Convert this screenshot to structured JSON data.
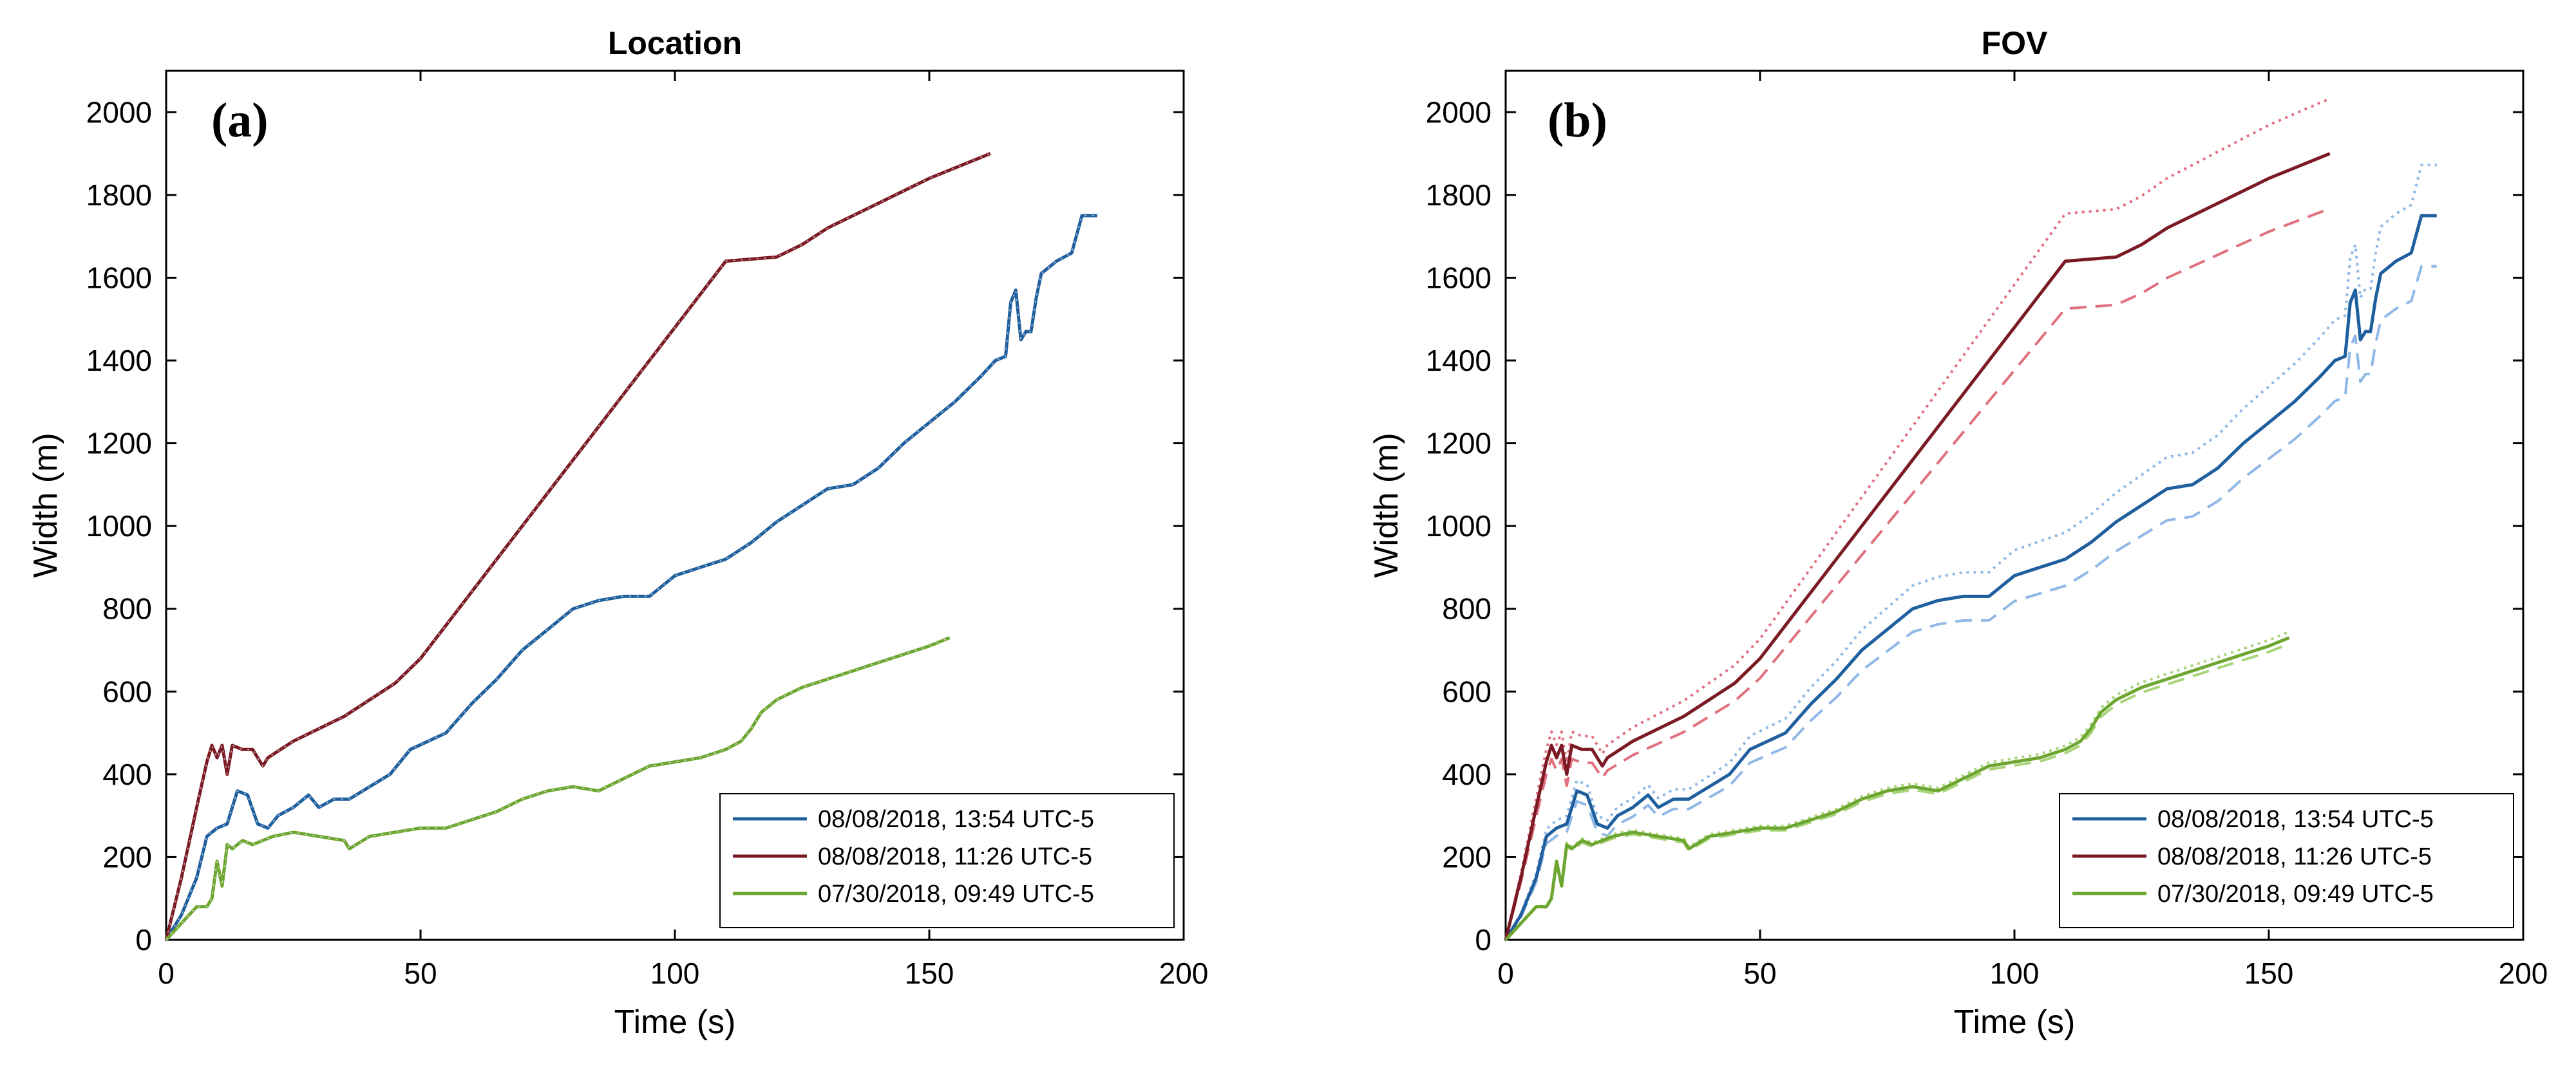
{
  "chart_data": [
    {
      "type": "line",
      "title": "Location",
      "panel_label": "(a)",
      "xlabel": "Time (s)",
      "ylabel": "Width (m)",
      "xlim": [
        0,
        200
      ],
      "ylim": [
        0,
        2100
      ],
      "xticks": [
        0,
        50,
        100,
        150,
        200
      ],
      "yticks": [
        0,
        200,
        400,
        600,
        800,
        1000,
        1200,
        1400,
        1600,
        1800,
        2000
      ],
      "grid": false,
      "legend_position": "bottom-right",
      "series": [
        {
          "name": "08/08/2018, 13:54 UTC-5",
          "color": "#1f5f9e",
          "bands": false,
          "x": [
            0,
            3,
            6,
            8,
            10,
            12,
            14,
            16,
            18,
            20,
            22,
            25,
            28,
            30,
            33,
            36,
            40,
            44,
            48,
            55,
            60,
            65,
            70,
            75,
            80,
            85,
            90,
            95,
            100,
            105,
            110,
            115,
            120,
            125,
            130,
            135,
            140,
            145,
            150,
            155,
            160,
            163,
            165,
            166,
            167,
            168,
            169,
            170,
            171,
            172,
            175,
            178,
            180,
            183
          ],
          "y": [
            0,
            60,
            150,
            250,
            270,
            280,
            360,
            350,
            280,
            270,
            300,
            320,
            350,
            320,
            340,
            340,
            370,
            400,
            460,
            500,
            570,
            630,
            700,
            750,
            800,
            820,
            830,
            830,
            880,
            900,
            920,
            960,
            1010,
            1050,
            1090,
            1100,
            1140,
            1200,
            1250,
            1300,
            1360,
            1400,
            1410,
            1540,
            1570,
            1450,
            1470,
            1470,
            1550,
            1610,
            1640,
            1660,
            1750,
            1750
          ]
        },
        {
          "name": "08/08/2018, 11:26 UTC-5",
          "color": "#7a1a24",
          "bands": false,
          "x": [
            0,
            3,
            6,
            8,
            9,
            10,
            11,
            12,
            13,
            15,
            17,
            19,
            20,
            25,
            30,
            35,
            40,
            45,
            50,
            60,
            70,
            80,
            90,
            100,
            110,
            120,
            125,
            130,
            140,
            150,
            160,
            162
          ],
          "y": [
            0,
            150,
            320,
            430,
            470,
            440,
            470,
            400,
            470,
            460,
            460,
            420,
            440,
            480,
            510,
            540,
            580,
            620,
            680,
            840,
            1000,
            1160,
            1320,
            1480,
            1640,
            1650,
            1680,
            1720,
            1780,
            1840,
            1890,
            1900
          ]
        },
        {
          "name": "07/30/2018, 09:49 UTC-5",
          "color": "#6ea632",
          "bands": false,
          "x": [
            0,
            3,
            6,
            8,
            9,
            10,
            11,
            12,
            13,
            15,
            17,
            19,
            21,
            25,
            30,
            35,
            36,
            40,
            45,
            50,
            55,
            60,
            65,
            70,
            75,
            80,
            85,
            90,
            95,
            100,
            105,
            110,
            113,
            115,
            117,
            120,
            125,
            130,
            135,
            140,
            145,
            150,
            154
          ],
          "y": [
            0,
            40,
            80,
            80,
            100,
            190,
            130,
            230,
            220,
            240,
            230,
            240,
            250,
            260,
            250,
            240,
            220,
            250,
            260,
            270,
            270,
            290,
            310,
            340,
            360,
            370,
            360,
            390,
            420,
            430,
            440,
            460,
            480,
            510,
            550,
            580,
            610,
            630,
            650,
            670,
            690,
            710,
            730
          ]
        }
      ]
    },
    {
      "type": "line",
      "title": "FOV",
      "panel_label": "(b)",
      "xlabel": "Time (s)",
      "ylabel": "Width (m)",
      "xlim": [
        0,
        200
      ],
      "ylim": [
        0,
        2100
      ],
      "xticks": [
        0,
        50,
        100,
        150,
        200
      ],
      "yticks": [
        0,
        200,
        400,
        600,
        800,
        1000,
        1200,
        1400,
        1600,
        1800,
        2000
      ],
      "grid": false,
      "legend_position": "bottom-right",
      "series": [
        {
          "name": "08/08/2018, 13:54 UTC-5",
          "color": "#1f5f9e",
          "band_color": "#8fb8e6",
          "bands": true,
          "upper_scale": 1.07,
          "lower_scale": 0.93,
          "x": [
            0,
            3,
            6,
            8,
            10,
            12,
            14,
            16,
            18,
            20,
            22,
            25,
            28,
            30,
            33,
            36,
            40,
            44,
            48,
            55,
            60,
            65,
            70,
            75,
            80,
            85,
            90,
            95,
            100,
            105,
            110,
            115,
            120,
            125,
            130,
            135,
            140,
            145,
            150,
            155,
            160,
            163,
            165,
            166,
            167,
            168,
            169,
            170,
            171,
            172,
            175,
            178,
            180,
            183
          ],
          "y": [
            0,
            60,
            150,
            250,
            270,
            280,
            360,
            350,
            280,
            270,
            300,
            320,
            350,
            320,
            340,
            340,
            370,
            400,
            460,
            500,
            570,
            630,
            700,
            750,
            800,
            820,
            830,
            830,
            880,
            900,
            920,
            960,
            1010,
            1050,
            1090,
            1100,
            1140,
            1200,
            1250,
            1300,
            1360,
            1400,
            1410,
            1540,
            1570,
            1450,
            1470,
            1470,
            1550,
            1610,
            1640,
            1660,
            1750,
            1750
          ]
        },
        {
          "name": "08/08/2018, 11:26 UTC-5",
          "color": "#7a1a24",
          "band_color": "#e0707e",
          "bands": true,
          "upper_scale": 1.07,
          "lower_scale": 0.93,
          "x": [
            0,
            3,
            6,
            8,
            9,
            10,
            11,
            12,
            13,
            15,
            17,
            19,
            20,
            25,
            30,
            35,
            40,
            45,
            50,
            60,
            70,
            80,
            90,
            100,
            110,
            120,
            125,
            130,
            140,
            150,
            160,
            162
          ],
          "y": [
            0,
            150,
            320,
            430,
            470,
            440,
            470,
            400,
            470,
            460,
            460,
            420,
            440,
            480,
            510,
            540,
            580,
            620,
            680,
            840,
            1000,
            1160,
            1320,
            1480,
            1640,
            1650,
            1680,
            1720,
            1780,
            1840,
            1890,
            1900
          ]
        },
        {
          "name": "07/30/2018, 09:49 UTC-5",
          "color": "#6ea632",
          "band_color": "#a8d47a",
          "bands": true,
          "upper_scale": 1.02,
          "lower_scale": 0.98,
          "x": [
            0,
            3,
            6,
            8,
            9,
            10,
            11,
            12,
            13,
            15,
            17,
            19,
            21,
            25,
            30,
            35,
            36,
            40,
            45,
            50,
            55,
            60,
            65,
            70,
            75,
            80,
            85,
            90,
            95,
            100,
            105,
            110,
            113,
            115,
            117,
            120,
            125,
            130,
            135,
            140,
            145,
            150,
            154
          ],
          "y": [
            0,
            40,
            80,
            80,
            100,
            190,
            130,
            230,
            220,
            240,
            230,
            240,
            250,
            260,
            250,
            240,
            220,
            250,
            260,
            270,
            270,
            290,
            310,
            340,
            360,
            370,
            360,
            390,
            420,
            430,
            440,
            460,
            480,
            510,
            550,
            580,
            610,
            630,
            650,
            670,
            690,
            710,
            730
          ]
        }
      ]
    }
  ]
}
